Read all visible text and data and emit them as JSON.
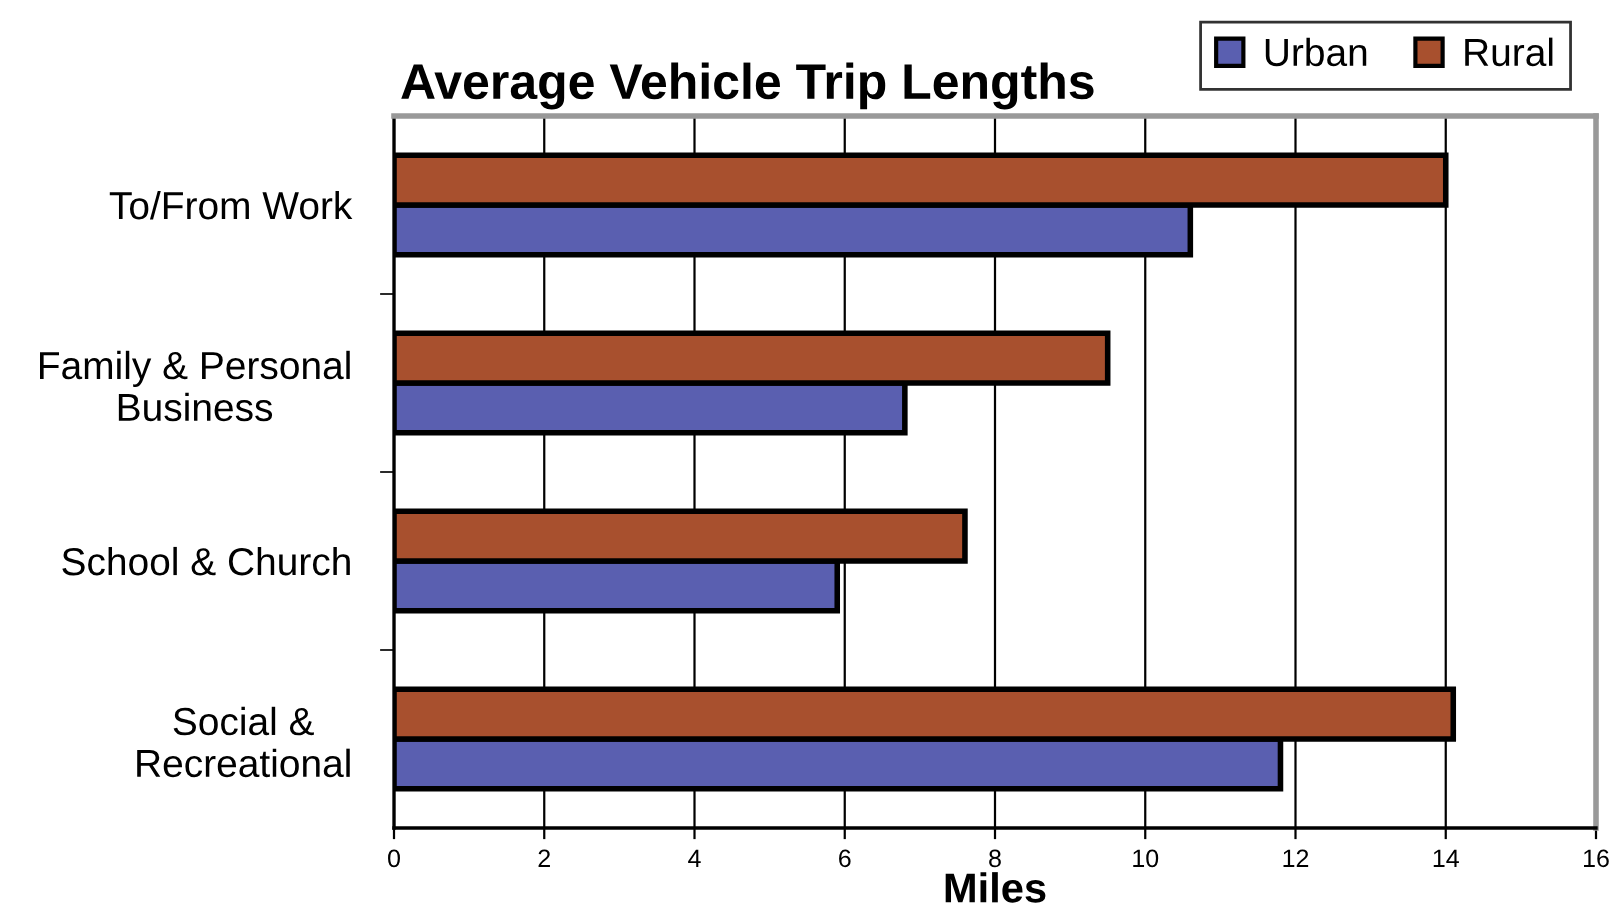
{
  "chart_data": {
    "type": "bar",
    "orientation": "horizontal",
    "title": "Average Vehicle Trip Lengths",
    "xlabel": "Miles",
    "categories": [
      "To/From Work",
      "Family & Personal\nBusiness",
      "School & Church",
      "Social &\nRecreational"
    ],
    "series": [
      {
        "name": "Urban",
        "color": "#5a5fb0",
        "values": [
          10.6,
          6.8,
          5.9,
          11.8
        ]
      },
      {
        "name": "Rural",
        "color": "#a8502e",
        "values": [
          14.0,
          9.5,
          7.6,
          14.1
        ]
      }
    ],
    "xlim": [
      0,
      16
    ],
    "xticks": [
      0,
      2,
      4,
      6,
      8,
      10,
      12,
      14,
      16
    ],
    "grid": "x",
    "legend": "top right"
  }
}
